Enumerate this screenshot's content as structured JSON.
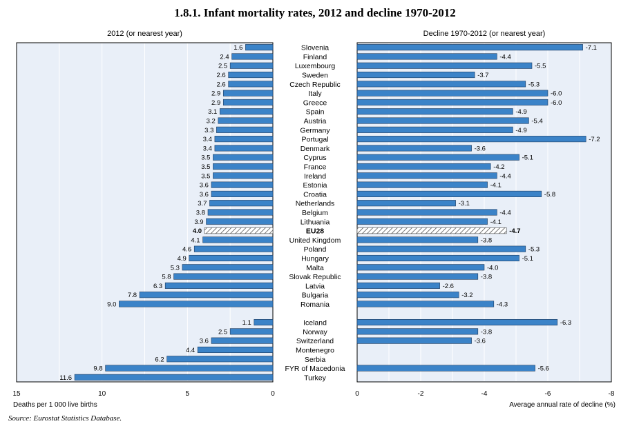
{
  "figure": {
    "title": "1.8.1.   Infant mortality rates, 2012 and decline 1970-2012",
    "source": "Source:  Eurostat Statistics Database."
  },
  "colors": {
    "bar": "#3b83c8",
    "bar_edge": "#1f3a5c",
    "plot_bg": "#e9eff8",
    "grid": "#ffffff",
    "hatch": "#555555"
  },
  "chart_data": [
    {
      "type": "bar",
      "orientation": "horizontal",
      "title": "2012 (or nearest year)",
      "xlabel": "Deaths per 1 000 live births",
      "xlim": [
        15,
        0
      ],
      "xticks": [
        "15",
        "10",
        "5",
        "0"
      ],
      "highlight": "EU28",
      "categories": [
        "Slovenia",
        "Finland",
        "Luxembourg",
        "Sweden",
        "Czech Republic",
        "Italy",
        "Greece",
        "Spain",
        "Austria",
        "Germany",
        "Portugal",
        "Denmark",
        "Cyprus",
        "France",
        "Ireland",
        "Estonia",
        "Croatia",
        "Netherlands",
        "Belgium",
        "Lithuania",
        "EU28",
        "United Kingdom",
        "Poland",
        "Hungary",
        "Malta",
        "Slovak Republic",
        "Latvia",
        "Bulgaria",
        "Romania",
        "",
        "Iceland",
        "Norway",
        "Switzerland",
        "Montenegro",
        "Serbia",
        "FYR of Macedonia",
        "Turkey"
      ],
      "values": [
        1.6,
        2.4,
        2.5,
        2.6,
        2.6,
        2.9,
        2.9,
        3.1,
        3.2,
        3.3,
        3.4,
        3.4,
        3.5,
        3.5,
        3.5,
        3.6,
        3.6,
        3.7,
        3.8,
        3.9,
        4.0,
        4.1,
        4.6,
        4.9,
        5.3,
        5.8,
        6.3,
        7.8,
        9.0,
        null,
        1.1,
        2.5,
        3.6,
        4.4,
        6.2,
        9.8,
        11.6
      ],
      "labels": [
        "1.6",
        "2.4",
        "2.5",
        "2.6",
        "2.6",
        "2.9",
        "2.9",
        "3.1",
        "3.2",
        "3.3",
        "3.4",
        "3.4",
        "3.5",
        "3.5",
        "3.5",
        "3.6",
        "3.6",
        "3.7",
        "3.8",
        "3.9",
        "4.0",
        "4.1",
        "4.6",
        "4.9",
        "5.3",
        "5.8",
        "6.3",
        "7.8",
        "9.0",
        "",
        "1.1",
        "2.5",
        "3.6",
        "4.4",
        "6.2",
        "9.8",
        "11.6"
      ]
    },
    {
      "type": "bar",
      "orientation": "horizontal",
      "title": "Decline 1970-2012 (or nearest year)",
      "xlabel": "Average annual rate of decline (%)",
      "xlim": [
        0,
        -8
      ],
      "xticks": [
        "0",
        "-2",
        "-4",
        "-6",
        "-8"
      ],
      "highlight": "EU28",
      "categories": [
        "Slovenia",
        "Finland",
        "Luxembourg",
        "Sweden",
        "Czech Republic",
        "Italy",
        "Greece",
        "Spain",
        "Austria",
        "Germany",
        "Portugal",
        "Denmark",
        "Cyprus",
        "France",
        "Ireland",
        "Estonia",
        "Croatia",
        "Netherlands",
        "Belgium",
        "Lithuania",
        "EU28",
        "United Kingdom",
        "Poland",
        "Hungary",
        "Malta",
        "Slovak Republic",
        "Latvia",
        "Bulgaria",
        "Romania",
        "",
        "Iceland",
        "Norway",
        "Switzerland",
        "Montenegro",
        "Serbia",
        "FYR of Macedonia",
        "Turkey"
      ],
      "values": [
        -7.1,
        -4.4,
        -5.5,
        -3.7,
        -5.3,
        -6.0,
        -6.0,
        -4.9,
        -5.4,
        -4.9,
        -7.2,
        -3.6,
        -5.1,
        -4.2,
        -4.4,
        -4.1,
        -5.8,
        -3.1,
        -4.4,
        -4.1,
        -4.7,
        -3.8,
        -5.3,
        -5.1,
        -4.0,
        -3.8,
        -2.6,
        -3.2,
        -4.3,
        null,
        -6.3,
        -3.8,
        -3.6,
        null,
        null,
        -5.6,
        null
      ],
      "labels": [
        "-7.1",
        "-4.4",
        "-5.5",
        "-3.7",
        "-5.3",
        "-6.0",
        "-6.0",
        "-4.9",
        "-5.4",
        "-4.9",
        "-7.2",
        "-3.6",
        "-5.1",
        "-4.2",
        "-4.4",
        "-4.1",
        "-5.8",
        "-3.1",
        "-4.4",
        "-4.1",
        "-4.7",
        "-3.8",
        "-5.3",
        "-5.1",
        "-4.0",
        "-3.8",
        "-2.6",
        "-3.2",
        "-4.3",
        "",
        "-6.3",
        "-3.8",
        "-3.6",
        "",
        "",
        "-5.6",
        ""
      ]
    }
  ]
}
